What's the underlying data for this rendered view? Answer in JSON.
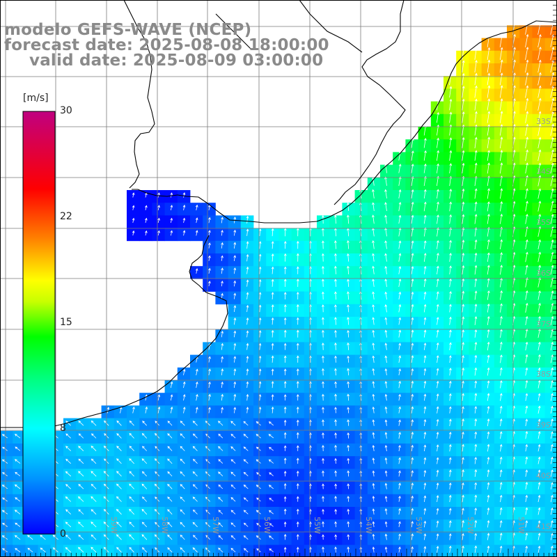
{
  "title": {
    "line1": "modelo GEFS-WAVE (NCEP)",
    "line2": "forecast date: 2025-08-08 18:00:00",
    "line3": "valid date: 2025-08-09 03:00:00"
  },
  "colorbar": {
    "unit": "[m/s]",
    "ticks": [
      "30",
      "22",
      "15",
      "8",
      "0"
    ],
    "min": 0,
    "max": 30,
    "stops": [
      {
        "v": 0,
        "color": "#0000ff"
      },
      {
        "v": 4,
        "color": "#0096ff"
      },
      {
        "v": 7.5,
        "color": "#00ffff"
      },
      {
        "v": 11,
        "color": "#00ff80"
      },
      {
        "v": 14,
        "color": "#00ff00"
      },
      {
        "v": 16.5,
        "color": "#c8ff00"
      },
      {
        "v": 18,
        "color": "#ffff00"
      },
      {
        "v": 21,
        "color": "#ff8000"
      },
      {
        "v": 24.5,
        "color": "#ff0000"
      },
      {
        "v": 30,
        "color": "#c00080"
      }
    ]
  },
  "map": {
    "lon_labels": [
      "59W",
      "58W",
      "57W",
      "56W",
      "55W",
      "54W",
      "53W",
      "52W",
      "51W"
    ],
    "lat_labels": [
      "33S",
      "34S",
      "35S",
      "36S",
      "37S",
      "38S",
      "39S",
      "40S",
      "41S"
    ],
    "field": "wind speed with direction arrows",
    "colors": {
      "land": "#ffffff",
      "coast": "#000000",
      "grid": "#7a7a7a",
      "arrow": "#ffffff"
    }
  }
}
